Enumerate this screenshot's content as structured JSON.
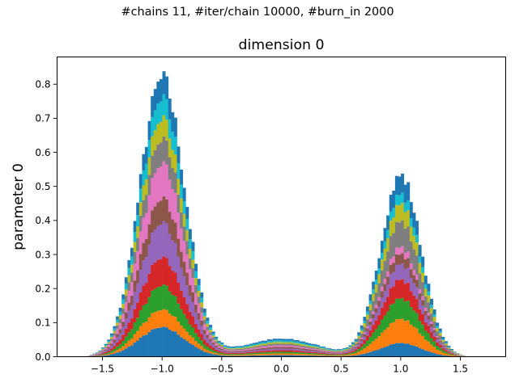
{
  "figure": {
    "suptitle": "#chains 11, #iter/chain 10000, #burn_in 2000"
  },
  "chart_data": {
    "type": "histogram",
    "stacked": true,
    "title": "dimension 0",
    "xlabel": "",
    "ylabel": "parameter 0",
    "xlim": [
      -1.88,
      1.88
    ],
    "ylim": [
      0.0,
      0.88
    ],
    "xticks": [
      -1.5,
      -1.0,
      -0.5,
      0.0,
      0.5,
      1.0,
      1.5
    ],
    "xtick_labels": [
      "−1.5",
      "−1.0",
      "−0.5",
      "0.0",
      "0.5",
      "1.0",
      "1.5"
    ],
    "yticks": [
      0.0,
      0.1,
      0.2,
      0.3,
      0.4,
      0.5,
      0.6,
      0.7,
      0.8
    ],
    "ytick_labels": [
      "0.0",
      "0.1",
      "0.2",
      "0.3",
      "0.4",
      "0.5",
      "0.6",
      "0.7",
      "0.8"
    ],
    "grid": false,
    "legend": "none",
    "series_colors": [
      "#1f77b4",
      "#ff7f0e",
      "#2ca02c",
      "#d62728",
      "#9467bd",
      "#8c564b",
      "#e377c2",
      "#7f7f7f",
      "#bcbd22",
      "#17becf",
      "#1f77b4"
    ],
    "bin_range": [
      -1.68,
      1.66
    ],
    "bin_count": 137,
    "component_peaks": [
      {
        "location": -1.0,
        "cumulative_heights": [
          0.085,
          0.135,
          0.205,
          0.285,
          0.385,
          0.455,
          0.555,
          0.625,
          0.685,
          0.745,
          0.81
        ]
      },
      {
        "location": 1.0,
        "cumulative_heights": [
          0.04,
          0.11,
          0.17,
          0.225,
          0.27,
          0.3,
          0.32,
          0.395,
          0.445,
          0.475,
          0.53
        ]
      }
    ],
    "valley": {
      "location": 0.0,
      "total_height": 0.095
    }
  }
}
